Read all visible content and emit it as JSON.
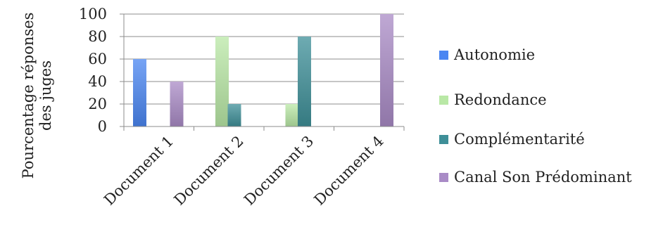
{
  "chart_data": {
    "type": "bar",
    "categories": [
      "Document 1",
      "Document 2",
      "Document 3",
      "Document 4"
    ],
    "series": [
      {
        "name": "Autonomie",
        "values": [
          60,
          0,
          0,
          0
        ],
        "color": "#4a86f2"
      },
      {
        "name": "Redondance",
        "values": [
          0,
          80,
          20,
          0
        ],
        "color": "#b9e8a6"
      },
      {
        "name": "Complémentarité",
        "values": [
          0,
          20,
          80,
          0
        ],
        "color": "#3e8f98"
      },
      {
        "name": "Canal Son Prédominant",
        "values": [
          40,
          0,
          0,
          100
        ],
        "color": "#a98bc6"
      }
    ],
    "ylabel": [
      "Pourcentage réponses",
      "des juges"
    ],
    "ylim": [
      0,
      100
    ],
    "yticks": [
      0,
      20,
      40,
      60,
      80,
      100
    ],
    "grid": true,
    "legend_position": "right"
  }
}
